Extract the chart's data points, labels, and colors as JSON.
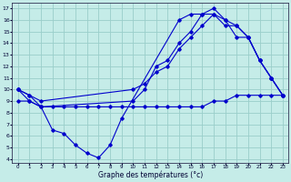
{
  "background_color": "#c5ece8",
  "grid_color": "#99ceca",
  "line_color": "#0000cc",
  "xlabel": "Graphe des températures (°c)",
  "xlim_min": -0.5,
  "xlim_max": 23.5,
  "ylim_min": 3.7,
  "ylim_max": 17.5,
  "xticks": [
    0,
    1,
    2,
    3,
    4,
    5,
    6,
    7,
    8,
    9,
    10,
    11,
    12,
    13,
    14,
    15,
    16,
    17,
    18,
    19,
    20,
    21,
    22,
    23
  ],
  "yticks": [
    4,
    5,
    6,
    7,
    8,
    9,
    10,
    11,
    12,
    13,
    14,
    15,
    16,
    17
  ],
  "line1_x": [
    0,
    1,
    2,
    3,
    4,
    5,
    6,
    7,
    8,
    9,
    14,
    15,
    16,
    17,
    18,
    19,
    20,
    21,
    22,
    23
  ],
  "line1_y": [
    10,
    9.5,
    8.5,
    6.5,
    6.2,
    5.2,
    4.5,
    4.1,
    5.2,
    7.5,
    16.0,
    16.5,
    16.5,
    16.5,
    15.5,
    15.5,
    14.5,
    12.5,
    11.0,
    9.5
  ],
  "line2_x": [
    0,
    1,
    2,
    10,
    11,
    12,
    13,
    14,
    15,
    16,
    17,
    18,
    19,
    20,
    21,
    22,
    23
  ],
  "line2_y": [
    10,
    9.5,
    9.0,
    10.0,
    10.5,
    11.5,
    12.0,
    13.5,
    14.5,
    15.5,
    16.5,
    16.0,
    14.5,
    14.5,
    12.5,
    11.0,
    9.5
  ],
  "line3_x": [
    0,
    1,
    2,
    10,
    11,
    12,
    13,
    14,
    15,
    16,
    17,
    18,
    19,
    20,
    21,
    22,
    23
  ],
  "line3_y": [
    10,
    9.0,
    8.5,
    9.0,
    10.0,
    12.0,
    12.5,
    14.0,
    15.0,
    16.5,
    17.0,
    16.0,
    15.5,
    14.5,
    12.5,
    11.0,
    9.5
  ],
  "line4_x": [
    0,
    1,
    2,
    3,
    4,
    5,
    6,
    7,
    8,
    9,
    10,
    11,
    12,
    13,
    14,
    15,
    16,
    17,
    18,
    19,
    20,
    21,
    22,
    23
  ],
  "line4_y": [
    9.0,
    9.0,
    8.5,
    8.5,
    8.5,
    8.5,
    8.5,
    8.5,
    8.5,
    8.5,
    8.5,
    8.5,
    8.5,
    8.5,
    8.5,
    8.5,
    8.5,
    9.0,
    9.0,
    9.5,
    9.5,
    9.5,
    9.5,
    9.5
  ]
}
